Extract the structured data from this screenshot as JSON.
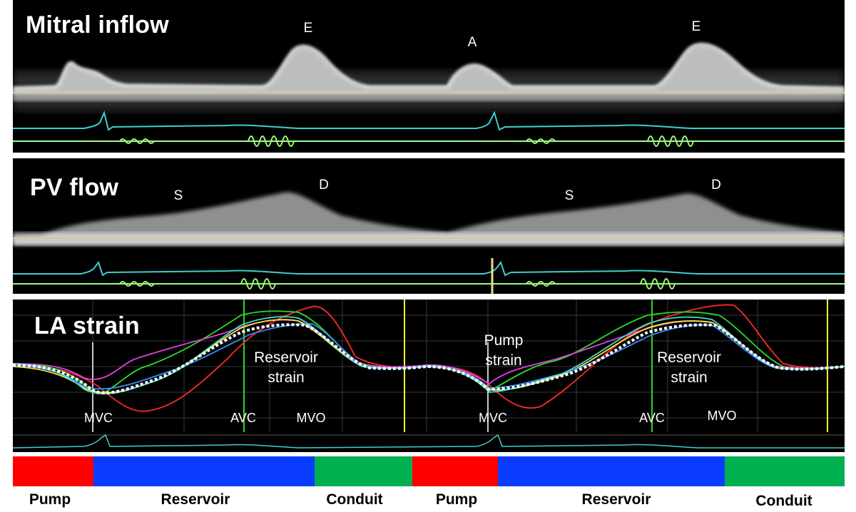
{
  "panels": {
    "mitral": {
      "title": "Mitral inflow",
      "waves": [
        "E",
        "A",
        "E"
      ]
    },
    "pv": {
      "title": "PV flow",
      "waves": [
        "S",
        "D",
        "S",
        "D"
      ]
    },
    "la": {
      "title": "LA strain",
      "events": [
        "MVC",
        "AVC",
        "MVO",
        "MVC",
        "AVC",
        "MVO"
      ],
      "annotations": {
        "reservoir_1": [
          "Reservoir",
          "strain"
        ],
        "pump": [
          "Pump",
          "strain"
        ],
        "reservoir_2": [
          "Reservoir",
          "strain"
        ]
      }
    }
  },
  "phases": [
    {
      "label": "Pump",
      "color": "#ff0000"
    },
    {
      "label": "Reservoir",
      "color": "#0a3cff"
    },
    {
      "label": "Conduit",
      "color": "#00b050"
    },
    {
      "label": "Pump",
      "color": "#ff0000"
    },
    {
      "label": "Reservoir",
      "color": "#0a3cff"
    },
    {
      "label": "Conduit",
      "color": "#00b050"
    }
  ],
  "colors": {
    "ecg": "#3ecfd0",
    "timing": "#9dfc7a",
    "baseline": "#d8c890",
    "marker_yellow": "#ffff3a",
    "marker_green": "#29d629",
    "strain_mean": "#ffffff"
  }
}
